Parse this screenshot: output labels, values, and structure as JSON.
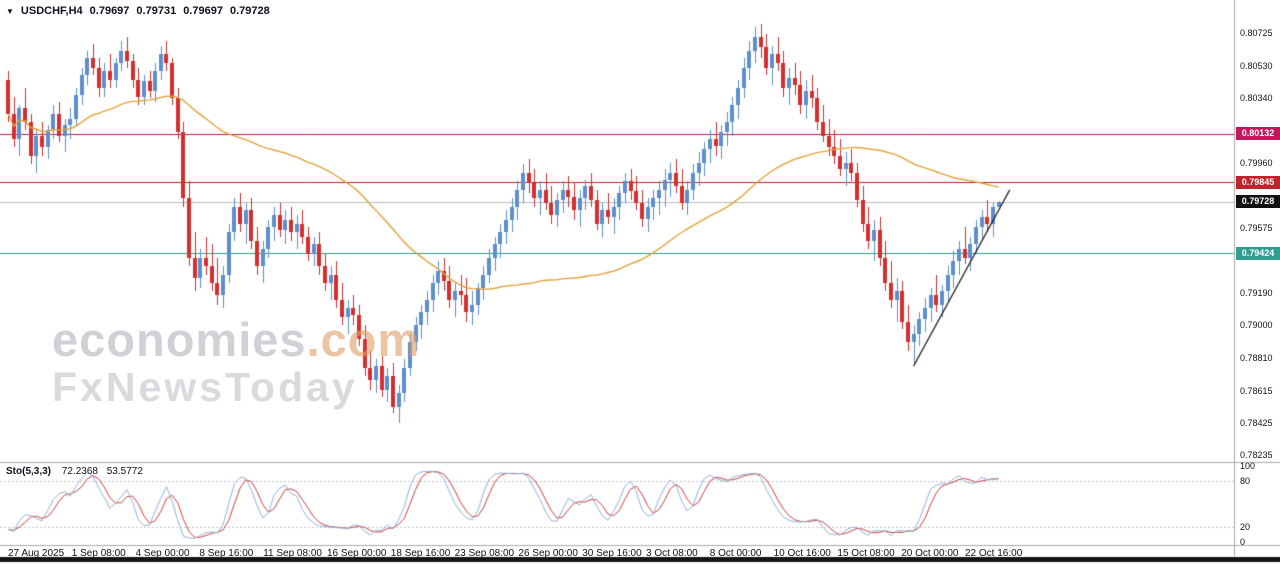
{
  "header": {
    "symbol": "USDCHF,H4",
    "open": "0.79697",
    "high": "0.79731",
    "low": "0.79697",
    "close": "0.79728"
  },
  "watermark": {
    "brand": "economies",
    "domain": ".com",
    "subbrand": "FxNewsToday"
  },
  "price_axis": {
    "ticks": [
      {
        "label": "0.80725",
        "price": 0.80725
      },
      {
        "label": "0.80530",
        "price": 0.8053
      },
      {
        "label": "0.80340",
        "price": 0.8034
      },
      {
        "label": "0.79960",
        "price": 0.7996
      },
      {
        "label": "0.79575",
        "price": 0.79575
      },
      {
        "label": "0.79190",
        "price": 0.7919
      },
      {
        "label": "0.79000",
        "price": 0.79
      },
      {
        "label": "0.78810",
        "price": 0.7881
      },
      {
        "label": "0.78615",
        "price": 0.78615
      },
      {
        "label": "0.78425",
        "price": 0.78425
      },
      {
        "label": "0.78235",
        "price": 0.78235
      }
    ],
    "badges": [
      {
        "label": "0.80132",
        "price": 0.80132,
        "color": "#C2185B",
        "kind": "resistance-line-badge"
      },
      {
        "label": "0.79845",
        "price": 0.79845,
        "color": "#C0222C",
        "kind": "resistance-line-badge"
      },
      {
        "label": "0.79728",
        "price": 0.79728,
        "color": "#111111",
        "kind": "current-price-badge"
      },
      {
        "label": "0.79424",
        "price": 0.79424,
        "color": "#2E9E8F",
        "kind": "support-line-badge"
      }
    ]
  },
  "indicator_panel": {
    "label": "Sto(5,3,3)",
    "value_k": "72.2368",
    "value_d": "53.5772",
    "axis_ticks": [
      {
        "label": "100",
        "value": 100
      },
      {
        "label": "80",
        "value": 80
      },
      {
        "label": "20",
        "value": 20
      },
      {
        "label": "0",
        "value": 0
      }
    ],
    "levels": [
      20,
      80
    ]
  },
  "time_axis": {
    "labels": [
      "27 Aug 2025",
      "1 Sep 08:00",
      "4 Sep 00:00",
      "8 Sep 16:00",
      "11 Sep 08:00",
      "16 Sep 00:00",
      "18 Sep 16:00",
      "23 Sep 08:00",
      "26 Sep 00:00",
      "30 Sep 16:00",
      "3 Oct 08:00",
      "8 Oct 00:00",
      "10 Oct 16:00",
      "15 Oct 08:00",
      "20 Oct 00:00",
      "22 Oct 16:00"
    ]
  },
  "colors": {
    "bull": "#5E8FCC",
    "bear": "#D32F2F",
    "ma": "#E2A33B",
    "stoch_k": "#8FB4D9",
    "stoch_d": "#D04040",
    "current_price_line": "#BBBBBB",
    "trendline": "#1A1A1A",
    "separator": "#AAAAAA",
    "level_line": "#C8C8C8",
    "scrollbar": "#151515"
  },
  "chart_data": {
    "type": "candlestick",
    "title": "USDCHF H4 with 50-period MA, horizontal levels, ascending trendline and Stochastic(5,3,3)",
    "symbol": "USDCHF",
    "timeframe": "H4",
    "price_range": {
      "min": 0.78235,
      "max": 0.80725
    },
    "candles": [
      [
        0.8045,
        0.805,
        0.802,
        0.8025
      ],
      [
        0.8025,
        0.8035,
        0.8005,
        0.801
      ],
      [
        0.801,
        0.803,
        0.8,
        0.8028
      ],
      [
        0.8028,
        0.804,
        0.8015,
        0.802
      ],
      [
        0.802,
        0.8025,
        0.7995,
        0.8
      ],
      [
        0.8,
        0.8015,
        0.799,
        0.8012
      ],
      [
        0.8012,
        0.802,
        0.8,
        0.8005
      ],
      [
        0.8005,
        0.8018,
        0.7998,
        0.8015
      ],
      [
        0.8015,
        0.803,
        0.801,
        0.8025
      ],
      [
        0.8025,
        0.8032,
        0.8008,
        0.8012
      ],
      [
        0.8012,
        0.8022,
        0.8002,
        0.8018
      ],
      [
        0.8018,
        0.8028,
        0.801,
        0.8022
      ],
      [
        0.8022,
        0.804,
        0.8018,
        0.8036
      ],
      [
        0.8036,
        0.8052,
        0.803,
        0.8048
      ],
      [
        0.8048,
        0.8062,
        0.8042,
        0.8058
      ],
      [
        0.8058,
        0.8066,
        0.8048,
        0.8052
      ],
      [
        0.8052,
        0.8058,
        0.8035,
        0.804
      ],
      [
        0.804,
        0.8055,
        0.8035,
        0.805
      ],
      [
        0.805,
        0.806,
        0.804,
        0.8045
      ],
      [
        0.8045,
        0.8058,
        0.804,
        0.8055
      ],
      [
        0.8055,
        0.8068,
        0.805,
        0.8062
      ],
      [
        0.8062,
        0.807,
        0.8052,
        0.8056
      ],
      [
        0.8056,
        0.806,
        0.804,
        0.8045
      ],
      [
        0.8045,
        0.8052,
        0.803,
        0.8035
      ],
      [
        0.8035,
        0.8048,
        0.803,
        0.8044
      ],
      [
        0.8044,
        0.805,
        0.8034,
        0.8038
      ],
      [
        0.8038,
        0.8055,
        0.8032,
        0.805
      ],
      [
        0.805,
        0.8065,
        0.8045,
        0.806
      ],
      [
        0.806,
        0.8068,
        0.805,
        0.8055
      ],
      [
        0.8055,
        0.8058,
        0.803,
        0.8034
      ],
      [
        0.8034,
        0.804,
        0.801,
        0.8014
      ],
      [
        0.8014,
        0.802,
        0.797,
        0.7975
      ],
      [
        0.7975,
        0.7985,
        0.7935,
        0.794
      ],
      [
        0.794,
        0.7955,
        0.792,
        0.7928
      ],
      [
        0.7928,
        0.7945,
        0.7922,
        0.794
      ],
      [
        0.794,
        0.7952,
        0.793,
        0.7935
      ],
      [
        0.7935,
        0.7948,
        0.792,
        0.7925
      ],
      [
        0.7925,
        0.794,
        0.7912,
        0.7918
      ],
      [
        0.7918,
        0.7935,
        0.791,
        0.793
      ],
      [
        0.793,
        0.796,
        0.7925,
        0.7955
      ],
      [
        0.7955,
        0.7975,
        0.795,
        0.797
      ],
      [
        0.797,
        0.7978,
        0.7955,
        0.796
      ],
      [
        0.796,
        0.7972,
        0.7948,
        0.7968
      ],
      [
        0.7968,
        0.7975,
        0.7945,
        0.795
      ],
      [
        0.795,
        0.7958,
        0.793,
        0.7935
      ],
      [
        0.7935,
        0.795,
        0.7925,
        0.7945
      ],
      [
        0.7945,
        0.7962,
        0.794,
        0.7958
      ],
      [
        0.7958,
        0.797,
        0.795,
        0.7965
      ],
      [
        0.7965,
        0.7972,
        0.7952,
        0.7956
      ],
      [
        0.7956,
        0.7968,
        0.7948,
        0.7962
      ],
      [
        0.7962,
        0.797,
        0.795,
        0.7955
      ],
      [
        0.7955,
        0.7965,
        0.7945,
        0.796
      ],
      [
        0.796,
        0.7968,
        0.7948,
        0.7952
      ],
      [
        0.7952,
        0.7958,
        0.7938,
        0.7942
      ],
      [
        0.7942,
        0.7952,
        0.7935,
        0.7948
      ],
      [
        0.7948,
        0.7955,
        0.793,
        0.7935
      ],
      [
        0.7935,
        0.7942,
        0.792,
        0.7925
      ],
      [
        0.7925,
        0.7935,
        0.7915,
        0.793
      ],
      [
        0.793,
        0.7938,
        0.791,
        0.7915
      ],
      [
        0.7915,
        0.7925,
        0.79,
        0.7905
      ],
      [
        0.7905,
        0.7915,
        0.7895,
        0.791
      ],
      [
        0.791,
        0.7918,
        0.79,
        0.7906
      ],
      [
        0.7906,
        0.7912,
        0.7888,
        0.7892
      ],
      [
        0.7892,
        0.79,
        0.787,
        0.7875
      ],
      [
        0.7875,
        0.7885,
        0.7862,
        0.7868
      ],
      [
        0.7868,
        0.788,
        0.786,
        0.7876
      ],
      [
        0.7876,
        0.7882,
        0.7858,
        0.7862
      ],
      [
        0.7862,
        0.7875,
        0.7855,
        0.787
      ],
      [
        0.787,
        0.7878,
        0.7848,
        0.7852
      ],
      [
        0.7852,
        0.7865,
        0.78425,
        0.786
      ],
      [
        0.786,
        0.788,
        0.7855,
        0.7875
      ],
      [
        0.7875,
        0.7895,
        0.787,
        0.789
      ],
      [
        0.789,
        0.7905,
        0.7885,
        0.79
      ],
      [
        0.79,
        0.7912,
        0.7892,
        0.7908
      ],
      [
        0.7908,
        0.792,
        0.79,
        0.7915
      ],
      [
        0.7915,
        0.793,
        0.7908,
        0.7925
      ],
      [
        0.7925,
        0.7938,
        0.7918,
        0.7932
      ],
      [
        0.7932,
        0.794,
        0.792,
        0.7926
      ],
      [
        0.7926,
        0.7935,
        0.791,
        0.7915
      ],
      [
        0.7915,
        0.7925,
        0.7905,
        0.792
      ],
      [
        0.792,
        0.793,
        0.7912,
        0.7918
      ],
      [
        0.7918,
        0.7928,
        0.7902,
        0.7908
      ],
      [
        0.7908,
        0.792,
        0.79,
        0.7912
      ],
      [
        0.7912,
        0.7925,
        0.7906,
        0.7922
      ],
      [
        0.7922,
        0.7935,
        0.7915,
        0.793
      ],
      [
        0.793,
        0.7945,
        0.7925,
        0.794
      ],
      [
        0.794,
        0.7952,
        0.7932,
        0.7948
      ],
      [
        0.7948,
        0.796,
        0.794,
        0.7955
      ],
      [
        0.7955,
        0.7968,
        0.7948,
        0.7962
      ],
      [
        0.7962,
        0.7975,
        0.7955,
        0.797
      ],
      [
        0.797,
        0.7985,
        0.7962,
        0.798
      ],
      [
        0.798,
        0.7995,
        0.7972,
        0.799
      ],
      [
        0.799,
        0.7998,
        0.7978,
        0.7984
      ],
      [
        0.7984,
        0.7992,
        0.797,
        0.7975
      ],
      [
        0.7975,
        0.7985,
        0.7965,
        0.798
      ],
      [
        0.798,
        0.799,
        0.7968,
        0.7972
      ],
      [
        0.7972,
        0.7982,
        0.796,
        0.7965
      ],
      [
        0.7965,
        0.7978,
        0.7958,
        0.7974
      ],
      [
        0.7974,
        0.7985,
        0.7966,
        0.798
      ],
      [
        0.798,
        0.7988,
        0.797,
        0.7976
      ],
      [
        0.7976,
        0.7984,
        0.7962,
        0.7968
      ],
      [
        0.7968,
        0.798,
        0.7958,
        0.7975
      ],
      [
        0.7975,
        0.7986,
        0.7968,
        0.7982
      ],
      [
        0.7982,
        0.799,
        0.797,
        0.7974
      ],
      [
        0.7974,
        0.798,
        0.7956,
        0.796
      ],
      [
        0.796,
        0.7972,
        0.7952,
        0.7968
      ],
      [
        0.7968,
        0.7978,
        0.796,
        0.7964
      ],
      [
        0.7964,
        0.7975,
        0.7954,
        0.797
      ],
      [
        0.797,
        0.7982,
        0.7962,
        0.7978
      ],
      [
        0.7978,
        0.799,
        0.7972,
        0.7985
      ],
      [
        0.7985,
        0.7992,
        0.7974,
        0.7979
      ],
      [
        0.7979,
        0.7988,
        0.7968,
        0.7972
      ],
      [
        0.7972,
        0.798,
        0.7958,
        0.7963
      ],
      [
        0.7963,
        0.7975,
        0.7955,
        0.797
      ],
      [
        0.797,
        0.798,
        0.7962,
        0.7975
      ],
      [
        0.7975,
        0.7985,
        0.7965,
        0.798
      ],
      [
        0.798,
        0.7992,
        0.797,
        0.7986
      ],
      [
        0.7986,
        0.7996,
        0.7976,
        0.799
      ],
      [
        0.799,
        0.7998,
        0.7978,
        0.7982
      ],
      [
        0.7982,
        0.7992,
        0.7968,
        0.7972
      ],
      [
        0.7972,
        0.7985,
        0.7965,
        0.798
      ],
      [
        0.798,
        0.7995,
        0.7974,
        0.799
      ],
      [
        0.799,
        0.8002,
        0.7982,
        0.7996
      ],
      [
        0.7996,
        0.8008,
        0.7988,
        0.8004
      ],
      [
        0.8004,
        0.8015,
        0.7996,
        0.801
      ],
      [
        0.801,
        0.802,
        0.8,
        0.8006
      ],
      [
        0.8006,
        0.8018,
        0.7998,
        0.8014
      ],
      [
        0.8014,
        0.8026,
        0.8006,
        0.802
      ],
      [
        0.802,
        0.8035,
        0.8012,
        0.803
      ],
      [
        0.803,
        0.8045,
        0.8022,
        0.804
      ],
      [
        0.804,
        0.8058,
        0.8034,
        0.8052
      ],
      [
        0.8052,
        0.8068,
        0.8045,
        0.8062
      ],
      [
        0.8062,
        0.8076,
        0.8055,
        0.807
      ],
      [
        0.807,
        0.8078,
        0.8058,
        0.8064
      ],
      [
        0.8064,
        0.8072,
        0.8048,
        0.8052
      ],
      [
        0.8052,
        0.8065,
        0.8042,
        0.806
      ],
      [
        0.806,
        0.807,
        0.805,
        0.8055
      ],
      [
        0.8055,
        0.8062,
        0.8035,
        0.804
      ],
      [
        0.804,
        0.8052,
        0.803,
        0.8046
      ],
      [
        0.8046,
        0.8055,
        0.8036,
        0.8042
      ],
      [
        0.8042,
        0.805,
        0.8025,
        0.803
      ],
      [
        0.803,
        0.8045,
        0.8022,
        0.8038
      ],
      [
        0.8038,
        0.8048,
        0.8028,
        0.8034
      ],
      [
        0.8034,
        0.804,
        0.8015,
        0.802
      ],
      [
        0.802,
        0.803,
        0.8008,
        0.8012
      ],
      [
        0.8012,
        0.8022,
        0.8,
        0.8005
      ],
      [
        0.8005,
        0.8015,
        0.7995,
        0.8
      ],
      [
        0.8,
        0.801,
        0.7988,
        0.7992
      ],
      [
        0.7992,
        0.8002,
        0.7982,
        0.7996
      ],
      [
        0.7996,
        0.8004,
        0.7985,
        0.799
      ],
      [
        0.799,
        0.7996,
        0.797,
        0.7974
      ],
      [
        0.7974,
        0.7982,
        0.7955,
        0.796
      ],
      [
        0.796,
        0.797,
        0.7945,
        0.795
      ],
      [
        0.795,
        0.7962,
        0.7938,
        0.7956
      ],
      [
        0.7956,
        0.7964,
        0.7935,
        0.794
      ],
      [
        0.794,
        0.795,
        0.792,
        0.7925
      ],
      [
        0.7925,
        0.7938,
        0.791,
        0.7915
      ],
      [
        0.7915,
        0.7928,
        0.7902,
        0.792
      ],
      [
        0.792,
        0.7926,
        0.7898,
        0.7902
      ],
      [
        0.7902,
        0.7912,
        0.7885,
        0.789
      ],
      [
        0.789,
        0.79,
        0.7878,
        0.7895
      ],
      [
        0.7895,
        0.7908,
        0.7888,
        0.7904
      ],
      [
        0.7904,
        0.7916,
        0.7896,
        0.791
      ],
      [
        0.791,
        0.7922,
        0.7902,
        0.7918
      ],
      [
        0.7918,
        0.793,
        0.7908,
        0.7912
      ],
      [
        0.7912,
        0.7924,
        0.7905,
        0.792
      ],
      [
        0.792,
        0.7935,
        0.7914,
        0.793
      ],
      [
        0.793,
        0.7944,
        0.7922,
        0.7938
      ],
      [
        0.7938,
        0.795,
        0.793,
        0.7945
      ],
      [
        0.7945,
        0.7958,
        0.7936,
        0.794
      ],
      [
        0.794,
        0.7952,
        0.7932,
        0.7948
      ],
      [
        0.7948,
        0.7962,
        0.7942,
        0.7958
      ],
      [
        0.7958,
        0.7968,
        0.795,
        0.7964
      ],
      [
        0.7964,
        0.7974,
        0.7955,
        0.796
      ],
      [
        0.796,
        0.7972,
        0.7952,
        0.79697
      ],
      [
        0.79697,
        0.79731,
        0.79697,
        0.79728
      ]
    ],
    "ma": {
      "period": 50
    },
    "hlines": [
      {
        "price": 0.80132,
        "label": "0.80132",
        "color": "#C2185B"
      },
      {
        "price": 0.79845,
        "label": "0.79845",
        "color": "#C0222C"
      },
      {
        "price": 0.79424,
        "label": "0.79424",
        "color": "#2E9E8F"
      }
    ],
    "current_price": {
      "price": 0.79728,
      "label": "0.79728"
    },
    "trendline": {
      "i1": 160,
      "p1": 0.7876,
      "i2": 177,
      "p2": 0.798
    },
    "stochastic": {
      "k": 5,
      "d": 3,
      "slowing": 3,
      "current_k": 72.2368,
      "current_d": 53.5772,
      "range": [
        0,
        100
      ],
      "levels": [
        20,
        80
      ]
    }
  }
}
